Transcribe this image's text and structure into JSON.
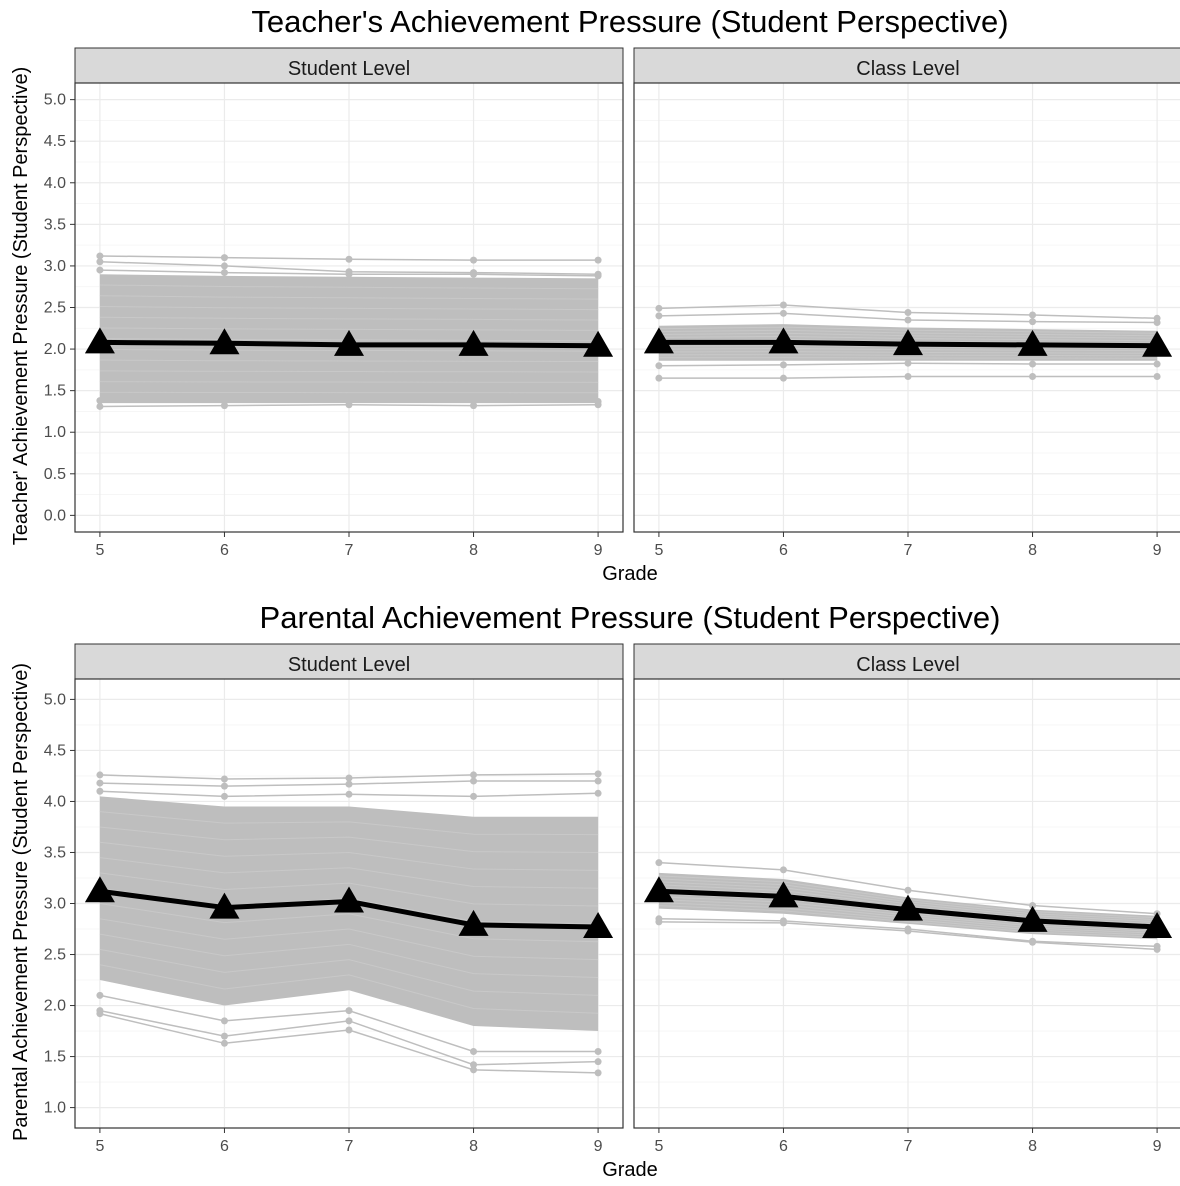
{
  "chart_data": [
    {
      "type": "line",
      "title": "Teacher's Achievement Pressure (Student Perspective)",
      "xlabel": "Grade",
      "ylabel": "Teacher' Achievement Pressure (Student Perspective)",
      "x": [
        5,
        6,
        7,
        8,
        9
      ],
      "ylim": [
        -0.2,
        5.2
      ],
      "yticks": [
        0.0,
        0.5,
        1.0,
        1.5,
        2.0,
        2.5,
        3.0,
        3.5,
        4.0,
        4.5,
        5.0
      ],
      "ytick_labels": [
        "0.0",
        "0.5",
        "1.0",
        "1.5",
        "2.0",
        "2.5",
        "3.0",
        "3.5",
        "4.0",
        "4.5",
        "5.0"
      ],
      "grid": true,
      "facets": [
        {
          "label": "Student Level",
          "mean_series": [
            2.08,
            2.07,
            2.05,
            2.05,
            2.04
          ],
          "band_upper": [
            2.9,
            2.88,
            2.87,
            2.86,
            2.85
          ],
          "band_lower": [
            1.35,
            1.35,
            1.35,
            1.35,
            1.35
          ],
          "individual_series": [
            [
              3.12,
              3.1,
              3.08,
              3.07,
              3.07
            ],
            [
              3.05,
              3.0,
              2.93,
              2.92,
              2.9
            ],
            [
              2.95,
              2.92,
              2.9,
              2.9,
              2.88
            ],
            [
              1.38,
              1.37,
              1.37,
              1.37,
              1.37
            ],
            [
              1.31,
              1.32,
              1.33,
              1.32,
              1.33
            ]
          ]
        },
        {
          "label": "Class Level",
          "mean_series": [
            2.08,
            2.08,
            2.06,
            2.05,
            2.04
          ],
          "band_upper": [
            2.28,
            2.3,
            2.26,
            2.24,
            2.22
          ],
          "band_lower": [
            1.86,
            1.86,
            1.86,
            1.86,
            1.86
          ],
          "individual_series": [
            [
              2.49,
              2.53,
              2.44,
              2.41,
              2.37
            ],
            [
              2.4,
              2.43,
              2.35,
              2.33,
              2.32
            ],
            [
              1.8,
              1.81,
              1.83,
              1.82,
              1.82
            ],
            [
              1.65,
              1.65,
              1.67,
              1.67,
              1.67
            ]
          ]
        }
      ]
    },
    {
      "type": "line",
      "title": "Parental Achievement Pressure (Student Perspective)",
      "xlabel": "Grade",
      "ylabel": "Parental Achievement Pressure (Student Perspective)",
      "x": [
        5,
        6,
        7,
        8,
        9
      ],
      "ylim": [
        0.8,
        5.2
      ],
      "yticks": [
        1.0,
        1.5,
        2.0,
        2.5,
        3.0,
        3.5,
        4.0,
        4.5,
        5.0
      ],
      "ytick_labels": [
        "1.0",
        "1.5",
        "2.0",
        "2.5",
        "3.0",
        "3.5",
        "4.0",
        "4.5",
        "5.0"
      ],
      "grid": true,
      "facets": [
        {
          "label": "Student Level",
          "mean_series": [
            3.12,
            2.96,
            3.02,
            2.79,
            2.77
          ],
          "band_upper": [
            4.05,
            3.95,
            3.95,
            3.85,
            3.85
          ],
          "band_lower": [
            2.25,
            2.0,
            2.15,
            1.8,
            1.75
          ],
          "individual_series": [
            [
              4.26,
              4.22,
              4.23,
              4.26,
              4.27
            ],
            [
              4.18,
              4.15,
              4.17,
              4.2,
              4.2
            ],
            [
              4.1,
              4.05,
              4.07,
              4.05,
              4.08
            ],
            [
              2.1,
              1.85,
              1.95,
              1.55,
              1.55
            ],
            [
              1.95,
              1.7,
              1.85,
              1.42,
              1.45
            ],
            [
              1.92,
              1.63,
              1.76,
              1.37,
              1.34
            ]
          ]
        },
        {
          "label": "Class Level",
          "mean_series": [
            3.12,
            3.07,
            2.94,
            2.83,
            2.77
          ],
          "band_upper": [
            3.3,
            3.24,
            3.06,
            2.94,
            2.88
          ],
          "band_lower": [
            2.95,
            2.9,
            2.8,
            2.7,
            2.65
          ],
          "individual_series": [
            [
              3.4,
              3.33,
              3.13,
              2.98,
              2.9
            ],
            [
              2.85,
              2.83,
              2.75,
              2.63,
              2.58
            ],
            [
              2.82,
              2.81,
              2.73,
              2.62,
              2.55
            ]
          ]
        }
      ]
    }
  ]
}
